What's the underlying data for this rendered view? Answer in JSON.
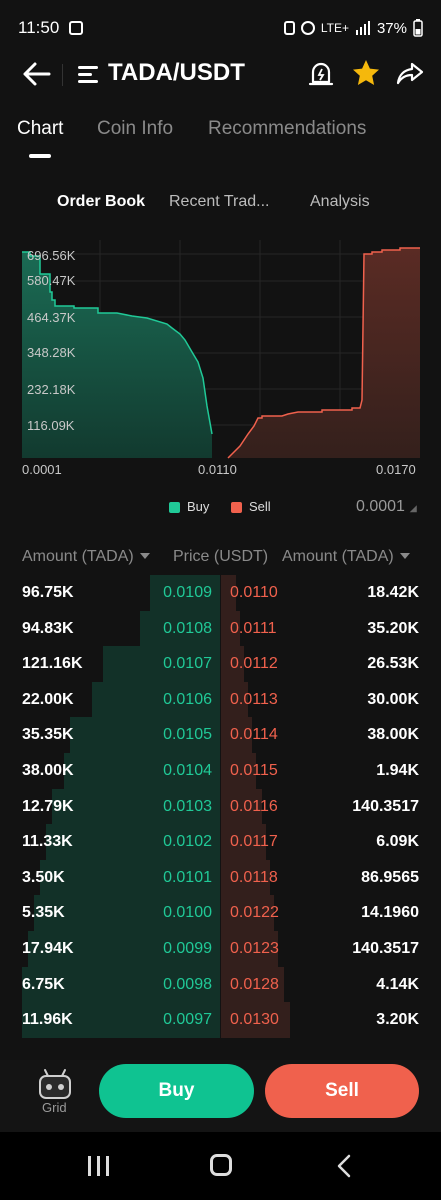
{
  "status_bar": {
    "time": "11:50",
    "signal": "LTE+",
    "battery": "37%"
  },
  "header": {
    "title": "TADA/USDT"
  },
  "tabs": [
    {
      "label": "Chart"
    },
    {
      "label": "Coin Info"
    },
    {
      "label": "Recommendations"
    }
  ],
  "subtabs": [
    {
      "label": "Order Book"
    },
    {
      "label": "Recent Trad..."
    },
    {
      "label": "Analysis"
    }
  ],
  "depth_chart": {
    "y_ticks": [
      "696.56K",
      "580.47K",
      "464.37K",
      "348.28K",
      "232.18K",
      "116.09K"
    ],
    "x_ticks": [
      "0.0001",
      "0.0110",
      "0.0170"
    ],
    "legend": {
      "buy": "Buy",
      "sell": "Sell"
    },
    "precision": "0.0001",
    "colors": {
      "buy": "#20c997",
      "sell": "#f0614d"
    }
  },
  "orderbook": {
    "headers": {
      "bid_amount": "Amount (TADA)",
      "price": "Price (USDT)",
      "ask_amount": "Amount (TADA)"
    },
    "rows": [
      {
        "bid_amount": "96.75K",
        "bid_price": "0.0109",
        "ask_price": "0.0110",
        "ask_amount": "18.42K"
      },
      {
        "bid_amount": "94.83K",
        "bid_price": "0.0108",
        "ask_price": "0.0111",
        "ask_amount": "35.20K"
      },
      {
        "bid_amount": "121.16K",
        "bid_price": "0.0107",
        "ask_price": "0.0112",
        "ask_amount": "26.53K"
      },
      {
        "bid_amount": "22.00K",
        "bid_price": "0.0106",
        "ask_price": "0.0113",
        "ask_amount": "30.00K"
      },
      {
        "bid_amount": "35.35K",
        "bid_price": "0.0105",
        "ask_price": "0.0114",
        "ask_amount": "38.00K"
      },
      {
        "bid_amount": "38.00K",
        "bid_price": "0.0104",
        "ask_price": "0.0115",
        "ask_amount": "1.94K"
      },
      {
        "bid_amount": "12.79K",
        "bid_price": "0.0103",
        "ask_price": "0.0116",
        "ask_amount": "140.3517"
      },
      {
        "bid_amount": "11.33K",
        "bid_price": "0.0102",
        "ask_price": "0.0117",
        "ask_amount": "6.09K"
      },
      {
        "bid_amount": "3.50K",
        "bid_price": "0.0101",
        "ask_price": "0.0118",
        "ask_amount": "86.9565"
      },
      {
        "bid_amount": "5.35K",
        "bid_price": "0.0100",
        "ask_price": "0.0122",
        "ask_amount": "14.1960"
      },
      {
        "bid_amount": "17.94K",
        "bid_price": "0.0099",
        "ask_price": "0.0123",
        "ask_amount": "140.3517"
      },
      {
        "bid_amount": "6.75K",
        "bid_price": "0.0098",
        "ask_price": "0.0128",
        "ask_amount": "4.14K"
      },
      {
        "bid_amount": "11.96K",
        "bid_price": "0.0097",
        "ask_price": "0.0130",
        "ask_amount": "3.20K"
      }
    ]
  },
  "bottom_bar": {
    "grid_label": "Grid",
    "buy_label": "Buy",
    "sell_label": "Sell"
  }
}
